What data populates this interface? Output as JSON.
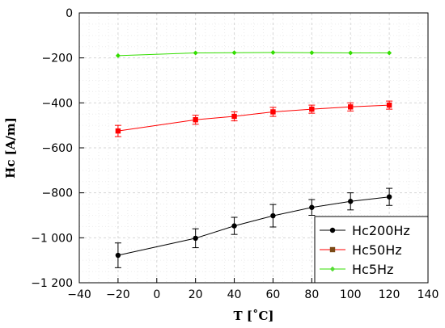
{
  "chart_data": {
    "type": "line",
    "title": "",
    "xlabel": "T [˚C]",
    "ylabel": "Hc [A/m]",
    "xlim": [
      -40,
      140
    ],
    "ylim": [
      -1200,
      0
    ],
    "xticks": [
      -40,
      -20,
      0,
      20,
      40,
      60,
      80,
      100,
      120,
      140
    ],
    "yticks": [
      0,
      -200,
      -400,
      -600,
      -800,
      -1000,
      -1200
    ],
    "xtick_labels": [
      "−40",
      "−20",
      "0",
      "20",
      "40",
      "60",
      "80",
      "100",
      "120",
      "140"
    ],
    "ytick_labels": [
      "0",
      "−200",
      "−400",
      "−600",
      "−800",
      "−1 000",
      "−1 200"
    ],
    "grid": true,
    "legend_position": "bottom-right",
    "x": [
      -20,
      20,
      40,
      60,
      80,
      100,
      120
    ],
    "series": [
      {
        "name": "Hc200Hz",
        "color": "#000000",
        "marker": "circle",
        "values": [
          -1078,
          -1002,
          -947,
          -902,
          -865,
          -838,
          -818
        ],
        "errors": [
          55,
          42,
          38,
          50,
          35,
          38,
          38
        ]
      },
      {
        "name": "Hc50Hz",
        "color": "#ff0000",
        "marker": "square",
        "values": [
          -525,
          -475,
          -460,
          -440,
          -428,
          -418,
          -410
        ],
        "errors": [
          25,
          20,
          20,
          20,
          18,
          18,
          18
        ]
      },
      {
        "name": "Hc5Hz",
        "color": "#33dd00",
        "marker": "diamond",
        "values": [
          -190,
          -178,
          -177,
          -176,
          -177,
          -178,
          -178
        ],
        "errors": [
          0,
          0,
          0,
          0,
          0,
          0,
          0
        ]
      }
    ],
    "legend_marker_colors": [
      "#000000",
      "#7a4a16",
      "#55dd33"
    ]
  }
}
